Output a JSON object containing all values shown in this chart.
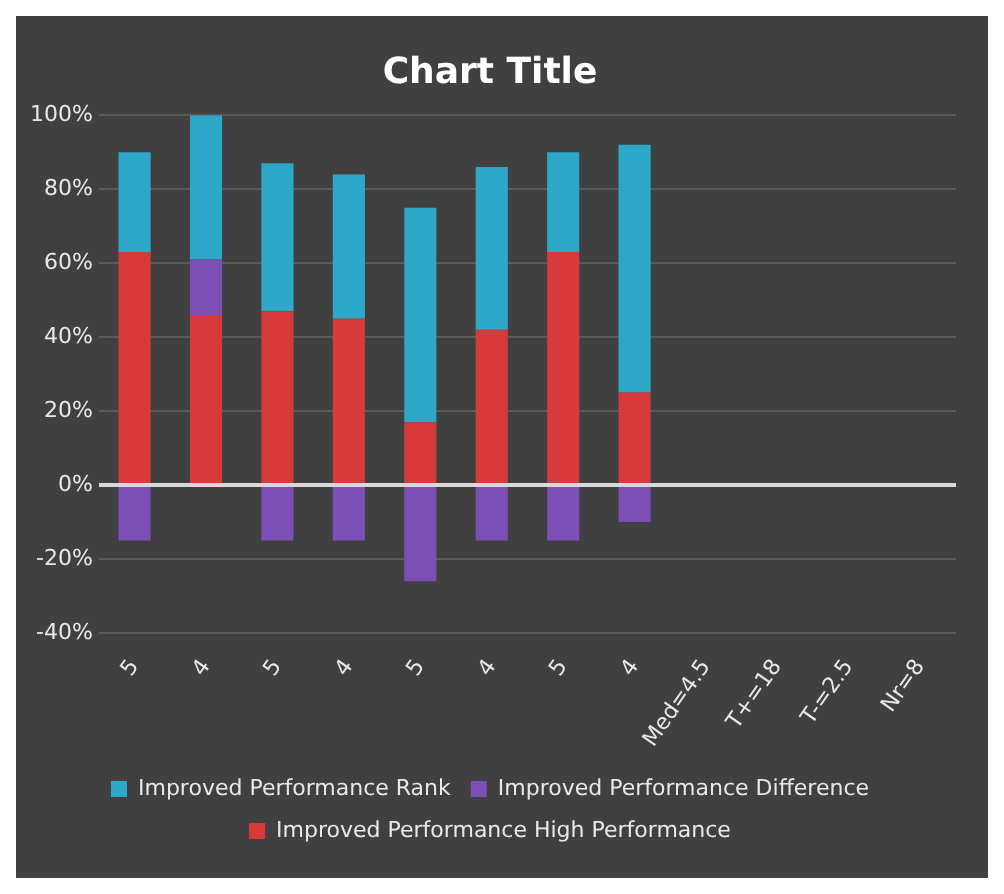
{
  "chart_data": {
    "type": "bar",
    "title": "Chart Title",
    "stacked": true,
    "categories": [
      "5",
      "4",
      "5",
      "4",
      "5",
      "4",
      "5",
      "4",
      "Med=4.5",
      "T+=18",
      "T-=2.5",
      "Nr=8"
    ],
    "series": [
      {
        "name": "Improved Performance High Performance",
        "color": "#d63a3a",
        "values": [
          63,
          46,
          47,
          45,
          17,
          42,
          63,
          25,
          null,
          null,
          null,
          null
        ]
      },
      {
        "name": "Improved Performance Difference",
        "color": "#7b4fb5",
        "values": [
          -15,
          15,
          -15,
          -15,
          -26,
          -15,
          -15,
          -10,
          null,
          null,
          null,
          null
        ]
      },
      {
        "name": "Improved Performance Rank",
        "color": "#2ea8c8",
        "values": [
          27,
          39,
          40,
          39,
          58,
          44,
          27,
          67,
          null,
          null,
          null,
          null
        ]
      }
    ],
    "ylim": [
      -40,
      100
    ],
    "yticks": [
      {
        "value": -40,
        "label": "-40%"
      },
      {
        "value": -20,
        "label": "-20%"
      },
      {
        "value": 0,
        "label": "0%"
      },
      {
        "value": 20,
        "label": "20%"
      },
      {
        "value": 40,
        "label": "40%"
      },
      {
        "value": 60,
        "label": "60%"
      },
      {
        "value": 80,
        "label": "80%"
      },
      {
        "value": 100,
        "label": "100%"
      }
    ],
    "grid": "y",
    "legend": "bottom"
  }
}
